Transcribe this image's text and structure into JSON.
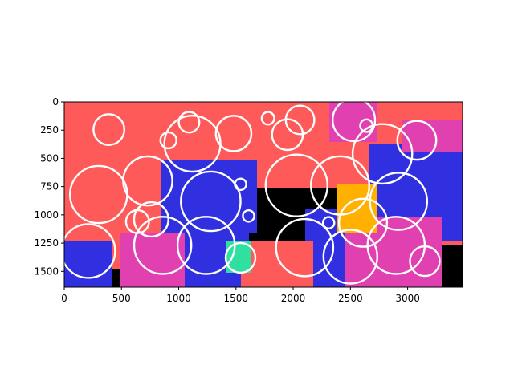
{
  "chart_data": {
    "type": "scatter",
    "title": "",
    "xlabel": "",
    "ylabel": "",
    "xlim": [
      0,
      3480
    ],
    "ylim": [
      1640,
      0
    ],
    "y_inverted": true,
    "grid": false,
    "background": "segmentation image (black, red #ff5a5a, blue #3030e0, magenta #e040b0, orange #ffb000, teal #30e0a0)",
    "x_ticks": [
      "0",
      "500",
      "1000",
      "1500",
      "2000",
      "2500",
      "3000"
    ],
    "y_ticks": [
      "0",
      "250",
      "500",
      "750",
      "1000",
      "1250",
      "1500"
    ],
    "x_tick_values": [
      0,
      500,
      1000,
      1500,
      2000,
      2500,
      3000
    ],
    "y_tick_values": [
      0,
      250,
      500,
      750,
      1000,
      1250,
      1500
    ],
    "marker": "open circle",
    "marker_color": "#ffffff",
    "circles": [
      {
        "x": 390,
        "y": 245,
        "r": 135
      },
      {
        "x": 1090,
        "y": 180,
        "r": 90
      },
      {
        "x": 1120,
        "y": 370,
        "r": 245
      },
      {
        "x": 910,
        "y": 340,
        "r": 70
      },
      {
        "x": 1480,
        "y": 280,
        "r": 155
      },
      {
        "x": 1780,
        "y": 145,
        "r": 55
      },
      {
        "x": 1950,
        "y": 290,
        "r": 135
      },
      {
        "x": 2060,
        "y": 160,
        "r": 125
      },
      {
        "x": 2530,
        "y": 160,
        "r": 185
      },
      {
        "x": 2640,
        "y": 210,
        "r": 55
      },
      {
        "x": 2780,
        "y": 460,
        "r": 260
      },
      {
        "x": 3080,
        "y": 340,
        "r": 170
      },
      {
        "x": 300,
        "y": 820,
        "r": 250
      },
      {
        "x": 730,
        "y": 700,
        "r": 215
      },
      {
        "x": 760,
        "y": 1040,
        "r": 150
      },
      {
        "x": 640,
        "y": 1060,
        "r": 100
      },
      {
        "x": 1540,
        "y": 730,
        "r": 50
      },
      {
        "x": 1280,
        "y": 880,
        "r": 260
      },
      {
        "x": 1610,
        "y": 1010,
        "r": 50
      },
      {
        "x": 2030,
        "y": 740,
        "r": 270
      },
      {
        "x": 2410,
        "y": 740,
        "r": 255
      },
      {
        "x": 2920,
        "y": 880,
        "r": 250
      },
      {
        "x": 2310,
        "y": 1070,
        "r": 50
      },
      {
        "x": 2610,
        "y": 1070,
        "r": 210
      },
      {
        "x": 210,
        "y": 1320,
        "r": 235
      },
      {
        "x": 860,
        "y": 1270,
        "r": 250
      },
      {
        "x": 1240,
        "y": 1270,
        "r": 250
      },
      {
        "x": 1540,
        "y": 1380,
        "r": 130
      },
      {
        "x": 2100,
        "y": 1290,
        "r": 250
      },
      {
        "x": 2500,
        "y": 1370,
        "r": 235
      },
      {
        "x": 2900,
        "y": 1270,
        "r": 250
      },
      {
        "x": 3150,
        "y": 1410,
        "r": 130
      }
    ]
  }
}
